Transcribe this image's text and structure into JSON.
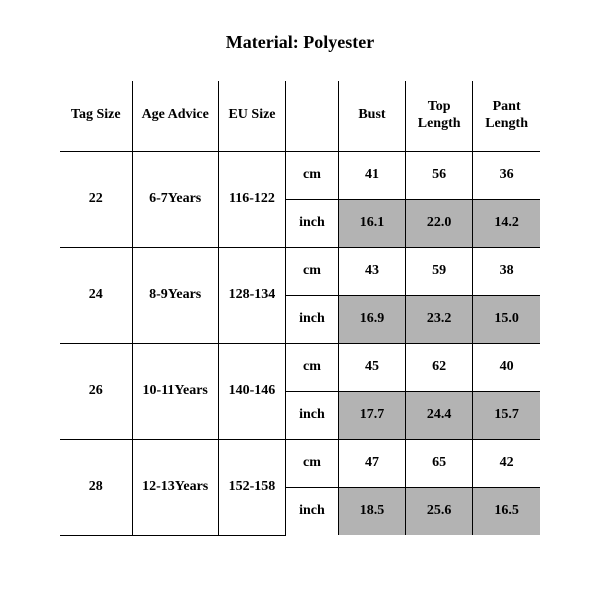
{
  "title": "Material: Polyester",
  "columns": {
    "tag_size": "Tag Size",
    "age_advice": "Age Advice",
    "eu_size": "EU Size",
    "unit": "",
    "bust": "Bust",
    "top_length": "Top Length",
    "pant_length": "Pant Length"
  },
  "units": {
    "cm": "cm",
    "inch": "inch"
  },
  "rows": [
    {
      "tag_size": "22",
      "age_advice": "6-7Years",
      "eu_size": "116-122",
      "cm": {
        "bust": "41",
        "top_length": "56",
        "pant_length": "36"
      },
      "inch": {
        "bust": "16.1",
        "top_length": "22.0",
        "pant_length": "14.2"
      }
    },
    {
      "tag_size": "24",
      "age_advice": "8-9Years",
      "eu_size": "128-134",
      "cm": {
        "bust": "43",
        "top_length": "59",
        "pant_length": "38"
      },
      "inch": {
        "bust": "16.9",
        "top_length": "23.2",
        "pant_length": "15.0"
      }
    },
    {
      "tag_size": "26",
      "age_advice": "10-11Years",
      "eu_size": "140-146",
      "cm": {
        "bust": "45",
        "top_length": "62",
        "pant_length": "40"
      },
      "inch": {
        "bust": "17.7",
        "top_length": "24.4",
        "pant_length": "15.7"
      }
    },
    {
      "tag_size": "28",
      "age_advice": "12-13Years",
      "eu_size": "152-158",
      "cm": {
        "bust": "47",
        "top_length": "65",
        "pant_length": "42"
      },
      "inch": {
        "bust": "18.5",
        "top_length": "25.6",
        "pant_length": "16.5"
      }
    }
  ],
  "colors": {
    "shade": "#b3b3b3",
    "border": "#000000",
    "bg": "#ffffff"
  }
}
